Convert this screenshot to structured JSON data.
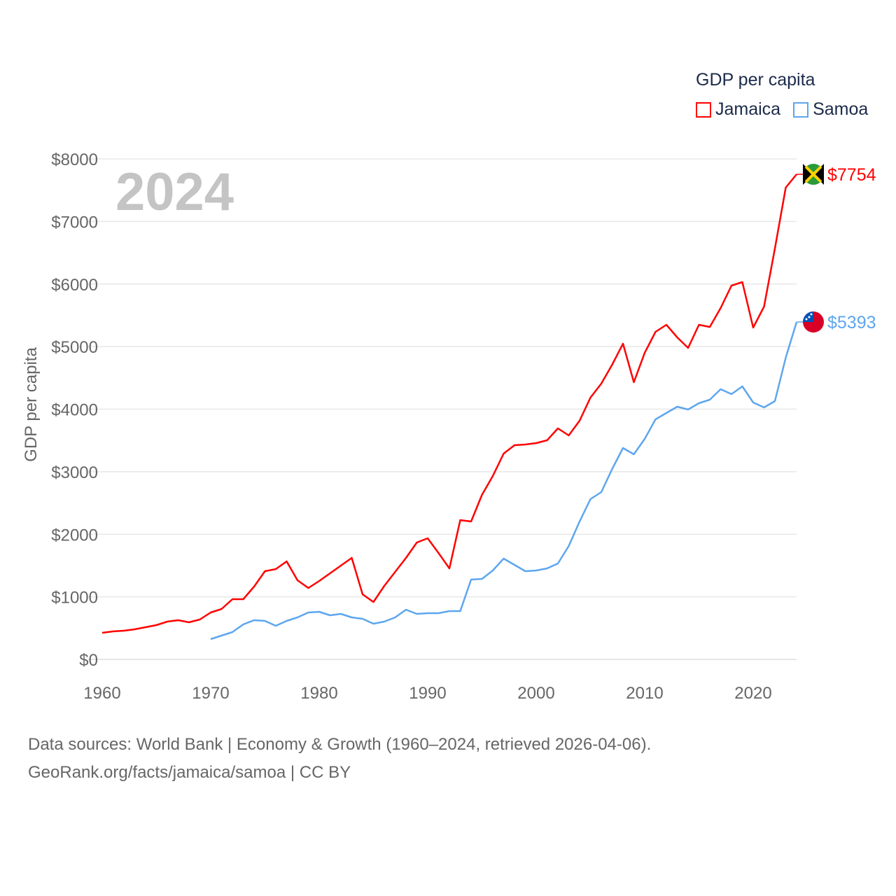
{
  "chart_data": {
    "type": "line",
    "title": "GDP per capita",
    "ylabel": "GDP per capita",
    "xlabel": "",
    "year_label": "2024",
    "xlim": [
      1960,
      2024
    ],
    "ylim": [
      0,
      8000
    ],
    "x_ticks": [
      "1960",
      "1970",
      "1980",
      "1990",
      "2000",
      "2010",
      "2020"
    ],
    "y_ticks": [
      "$0",
      "$1000",
      "$2000",
      "$3000",
      "$4000",
      "$5000",
      "$6000",
      "$7000",
      "$8000"
    ],
    "grid": true,
    "legend_position": "top-right",
    "series": [
      {
        "name": "Jamaica",
        "color": "#ff0000",
        "end_label": "$7754",
        "start_year": 1960,
        "values": [
          425,
          448,
          459,
          481,
          515,
          548,
          604,
          627,
          593,
          638,
          750,
          806,
          962,
          962,
          1164,
          1410,
          1443,
          1566,
          1264,
          1141,
          1253,
          1376,
          1499,
          1622,
          1040,
          917,
          1175,
          1399,
          1622,
          1869,
          1936,
          1700,
          1455,
          2227,
          2204,
          2629,
          2931,
          3290,
          3424,
          3435,
          3457,
          3502,
          3692,
          3580,
          3815,
          4185,
          4408,
          4710,
          5046,
          4431,
          4900,
          5236,
          5348,
          5147,
          4979,
          5348,
          5314,
          5617,
          5975,
          6031,
          5304,
          5639,
          6568,
          7541,
          7754
        ]
      },
      {
        "name": "Samoa",
        "color": "#5ea6ee",
        "end_label": "$5393",
        "start_year": 1970,
        "values": [
          324,
          380,
          436,
          560,
          627,
          615,
          537,
          615,
          671,
          750,
          761,
          705,
          727,
          671,
          649,
          571,
          604,
          671,
          794,
          727,
          738,
          738,
          772,
          772,
          1275,
          1287,
          1421,
          1611,
          1510,
          1410,
          1421,
          1455,
          1533,
          1813,
          2204,
          2562,
          2674,
          3043,
          3379,
          3278,
          3524,
          3838,
          3938,
          4039,
          3994,
          4095,
          4151,
          4319,
          4241,
          4364,
          4106,
          4028,
          4129,
          4822,
          5393
        ]
      }
    ]
  },
  "footer": {
    "line1": "Data sources: World Bank | Economy & Growth (1960–2024, retrieved 2026-04-06).",
    "line2": "GeoRank.org/facts/jamaica/samoa | CC BY"
  }
}
